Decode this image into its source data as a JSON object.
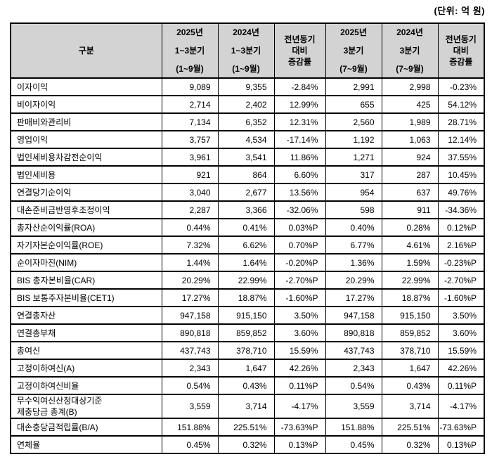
{
  "page": {
    "unit_label": "(단위: 억 원)"
  },
  "colors": {
    "header_bg": "#D3D3D3",
    "border": "#000000",
    "text": "#000000",
    "background": "#FFFFFF"
  },
  "chart_data": {
    "type": "table",
    "columns": [
      {
        "lines": [
          "구분"
        ]
      },
      {
        "lines": [
          "2025년",
          "1~3분기",
          "(1~9월)"
        ]
      },
      {
        "lines": [
          "2024년",
          "1~3분기",
          "(1~9월)"
        ]
      },
      {
        "lines": [
          "전년동기",
          "대비",
          "증감률"
        ]
      },
      {
        "lines": [
          "2025년",
          "3분기",
          "(7~9월)"
        ]
      },
      {
        "lines": [
          "2024년",
          "3분기",
          "(7~9월)"
        ]
      },
      {
        "lines": [
          "전년동기",
          "대비",
          "증감률"
        ]
      }
    ],
    "rows": [
      {
        "label": "이자이익",
        "values": [
          "9,089",
          "9,355",
          "-2.84%",
          "2,991",
          "2,998",
          "-0.23%"
        ]
      },
      {
        "label": "비이자이익",
        "values": [
          "2,714",
          "2,402",
          "12.99%",
          "655",
          "425",
          "54.12%"
        ]
      },
      {
        "label": "판매비와관리비",
        "values": [
          "7,134",
          "6,352",
          "12.31%",
          "2,560",
          "1,989",
          "28.71%"
        ]
      },
      {
        "label": "영업이익",
        "values": [
          "3,757",
          "4,534",
          "-17.14%",
          "1,192",
          "1,063",
          "12.14%"
        ]
      },
      {
        "label": "법인세비용차감전순이익",
        "values": [
          "3,961",
          "3,541",
          "11.86%",
          "1,271",
          "924",
          "37.55%"
        ]
      },
      {
        "label": "법인세비용",
        "values": [
          "921",
          "864",
          "6.60%",
          "317",
          "287",
          "10.45%"
        ]
      },
      {
        "label": "연결당기순이익",
        "values": [
          "3,040",
          "2,677",
          "13.56%",
          "954",
          "637",
          "49.76%"
        ]
      },
      {
        "label": "대손준비금반영후조정이익",
        "values": [
          "2,287",
          "3,366",
          "-32.06%",
          "598",
          "911",
          "-34.36%"
        ]
      },
      {
        "label": "총자산순이익률(ROA)",
        "values": [
          "0.44%",
          "0.41%",
          "0.03%P",
          "0.40%",
          "0.28%",
          "0.12%P"
        ]
      },
      {
        "label": "자기자본순이익률(ROE)",
        "values": [
          "7.32%",
          "6.62%",
          "0.70%P",
          "6.77%",
          "4.61%",
          "2.16%P"
        ]
      },
      {
        "label": "순이자마진(NIM)",
        "values": [
          "1.44%",
          "1.64%",
          "-0.20%P",
          "1.36%",
          "1.59%",
          "-0.23%P"
        ]
      },
      {
        "label": "BIS 총자본비율(CAR)",
        "values": [
          "20.29%",
          "22.99%",
          "-2.70%P",
          "20.29%",
          "22.99%",
          "-2.70%P"
        ]
      },
      {
        "label": "BIS 보통주자본비율(CET1)",
        "values": [
          "17.27%",
          "18.87%",
          "-1.60%P",
          "17.27%",
          "18.87%",
          "-1.60%P"
        ]
      },
      {
        "label": "연결총자산",
        "values": [
          "947,158",
          "915,150",
          "3.50%",
          "947,158",
          "915,150",
          "3.50%"
        ]
      },
      {
        "label": "연결총부채",
        "values": [
          "890,818",
          "859,852",
          "3.60%",
          "890,818",
          "859,852",
          "3.60%"
        ]
      },
      {
        "label": "총여신",
        "values": [
          "437,743",
          "378,710",
          "15.59%",
          "437,743",
          "378,710",
          "15.59%"
        ]
      },
      {
        "label": "고정이하여신(A)",
        "values": [
          "2,343",
          "1,647",
          "42.26%",
          "2,343",
          "1,647",
          "42.26%"
        ]
      },
      {
        "label": "고정이하여신비율",
        "values": [
          "0.54%",
          "0.43%",
          "0.11%P",
          "0.54%",
          "0.43%",
          "0.11%P"
        ]
      },
      {
        "label": "무수익여신산정대상기준\n제충당금 총계(B)",
        "values": [
          "3,559",
          "3,714",
          "-4.17%",
          "3,559",
          "3,714",
          "-4.17%"
        ]
      },
      {
        "label": "대손충당금적립률(B/A)",
        "values": [
          "151.88%",
          "225.51%",
          "-73.63%P",
          "151.88%",
          "225.51%",
          "-73.63%P"
        ]
      },
      {
        "label": "연체율",
        "values": [
          "0.45%",
          "0.32%",
          "0.13%P",
          "0.45%",
          "0.32%",
          "0.13%P"
        ]
      }
    ]
  }
}
